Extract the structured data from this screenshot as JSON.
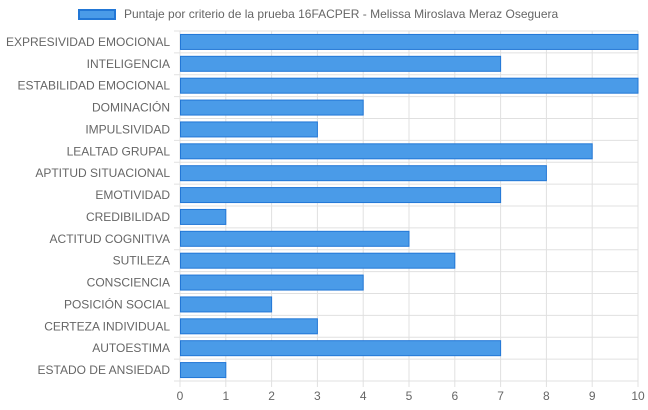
{
  "chart_data": {
    "type": "bar",
    "orientation": "horizontal",
    "categories": [
      "EXPRESIVIDAD EMOCIONAL",
      "INTELIGENCIA",
      "ESTABILIDAD EMOCIONAL",
      "DOMINACIÓN",
      "IMPULSIVIDAD",
      "LEALTAD GRUPAL",
      "APTITUD SITUACIONAL",
      "EMOTIVIDAD",
      "CREDIBILIDAD",
      "ACTITUD COGNITIVA",
      "SUTILEZA",
      "CONSCIENCIA",
      "POSICIÓN SOCIAL",
      "CERTEZA INDIVIDUAL",
      "AUTOESTIMA",
      "ESTADO DE ANSIEDAD"
    ],
    "series": [
      {
        "name": "Puntaje por criterio de la prueba 16FACPER - Melissa Miroslava Meraz Oseguera",
        "values": [
          10,
          7,
          10,
          4,
          3,
          9,
          8,
          7,
          1,
          5,
          6,
          4,
          2,
          3,
          7,
          1
        ]
      }
    ],
    "xlim": [
      0,
      10
    ],
    "xticks": [
      "0",
      "1",
      "2",
      "3",
      "4",
      "5",
      "6",
      "7",
      "8",
      "9",
      "10"
    ],
    "grid": true,
    "legend_position": "top",
    "colors": {
      "bar_fill": "#4a9be8",
      "bar_border": "#2277d6",
      "grid": "#e0e0e0",
      "tick_text": "#666666"
    }
  }
}
